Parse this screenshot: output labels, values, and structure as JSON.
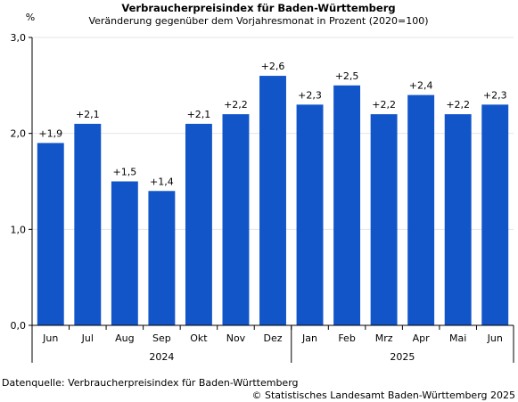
{
  "chart_data": {
    "type": "bar",
    "title": "Verbraucherpreisindex für Baden-Württemberg",
    "subtitle": "Veränderung gegenüber dem Vorjahresmonat in Prozent (2020=100)",
    "ylabel": "%",
    "xlabel": "",
    "categories": [
      "Jun",
      "Jul",
      "Aug",
      "Sep",
      "Okt",
      "Nov",
      "Dez",
      "Jan",
      "Feb",
      "Mrz",
      "Apr",
      "Mai",
      "Jun"
    ],
    "values": [
      1.9,
      2.1,
      1.5,
      1.4,
      2.1,
      2.2,
      2.6,
      2.3,
      2.5,
      2.2,
      2.4,
      2.2,
      2.3
    ],
    "data_labels": [
      "+1,9",
      "+2,1",
      "+1,5",
      "+1,4",
      "+2,1",
      "+2,2",
      "+2,6",
      "+2,3",
      "+2,5",
      "+2,2",
      "+2,4",
      "+2,2",
      "+2,3"
    ],
    "year_groups": [
      {
        "label": "2024",
        "start": 0,
        "end": 6
      },
      {
        "label": "2025",
        "start": 7,
        "end": 12
      }
    ],
    "ylim": [
      0,
      3
    ],
    "yticks": [
      0,
      1,
      2,
      3
    ],
    "ytick_labels": [
      "0,0",
      "1,0",
      "2,0",
      "3,0"
    ],
    "grid": true,
    "bar_color": "#1155c8",
    "grid_color": "#e6e6e6"
  },
  "footer": {
    "source": "Datenquelle: Verbraucherpreisindex für Baden-Württemberg",
    "copyright": "© Statistisches Landesamt Baden-Württemberg 2025"
  }
}
